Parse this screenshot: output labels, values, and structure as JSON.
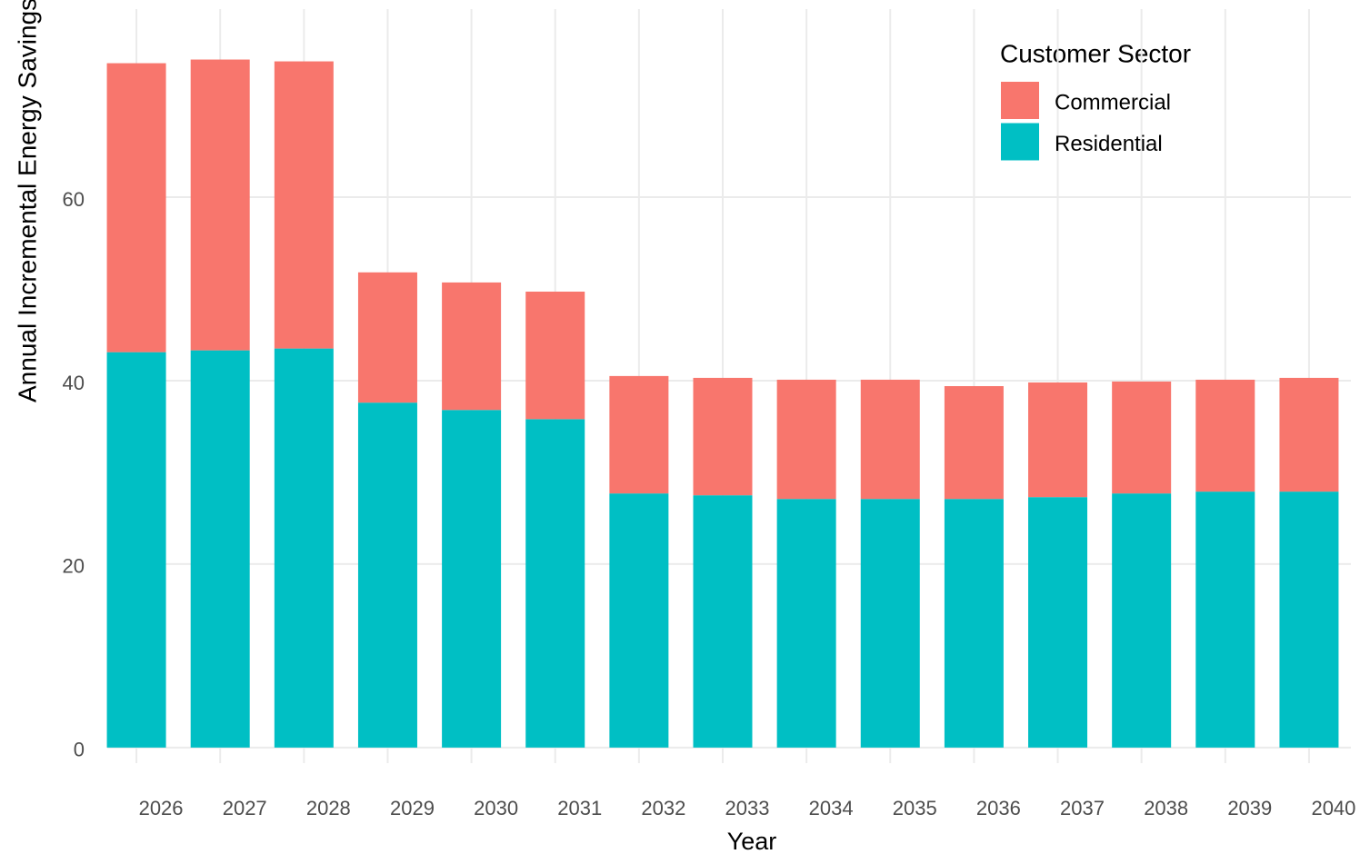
{
  "chart_data": {
    "type": "stacked_bar",
    "x_label": "Year",
    "y_label": "Annual Incremental Energy Savings",
    "legend_title": "Customer Sector",
    "legend_position": "top-right",
    "grid": true,
    "categories": [
      "2026",
      "2027",
      "2028",
      "2029",
      "2030",
      "2031",
      "2032",
      "2033",
      "2034",
      "2035",
      "2036",
      "2037",
      "2038",
      "2039",
      "2040"
    ],
    "series": [
      {
        "name": "Residential",
        "color": "#00bfc4",
        "values": [
          43.1,
          43.3,
          43.5,
          37.6,
          36.8,
          35.8,
          27.7,
          27.5,
          27.1,
          27.1,
          27.1,
          27.3,
          27.7,
          27.9,
          27.9
        ]
      },
      {
        "name": "Commercial",
        "color": "#f8766d",
        "values": [
          31.5,
          31.7,
          31.3,
          14.2,
          13.9,
          13.9,
          12.8,
          12.8,
          13.0,
          13.0,
          12.3,
          12.5,
          12.2,
          12.2,
          12.4
        ]
      }
    ],
    "ylim": [
      -1.7,
      80.5
    ],
    "yticks": [
      0,
      20,
      40,
      60
    ]
  }
}
